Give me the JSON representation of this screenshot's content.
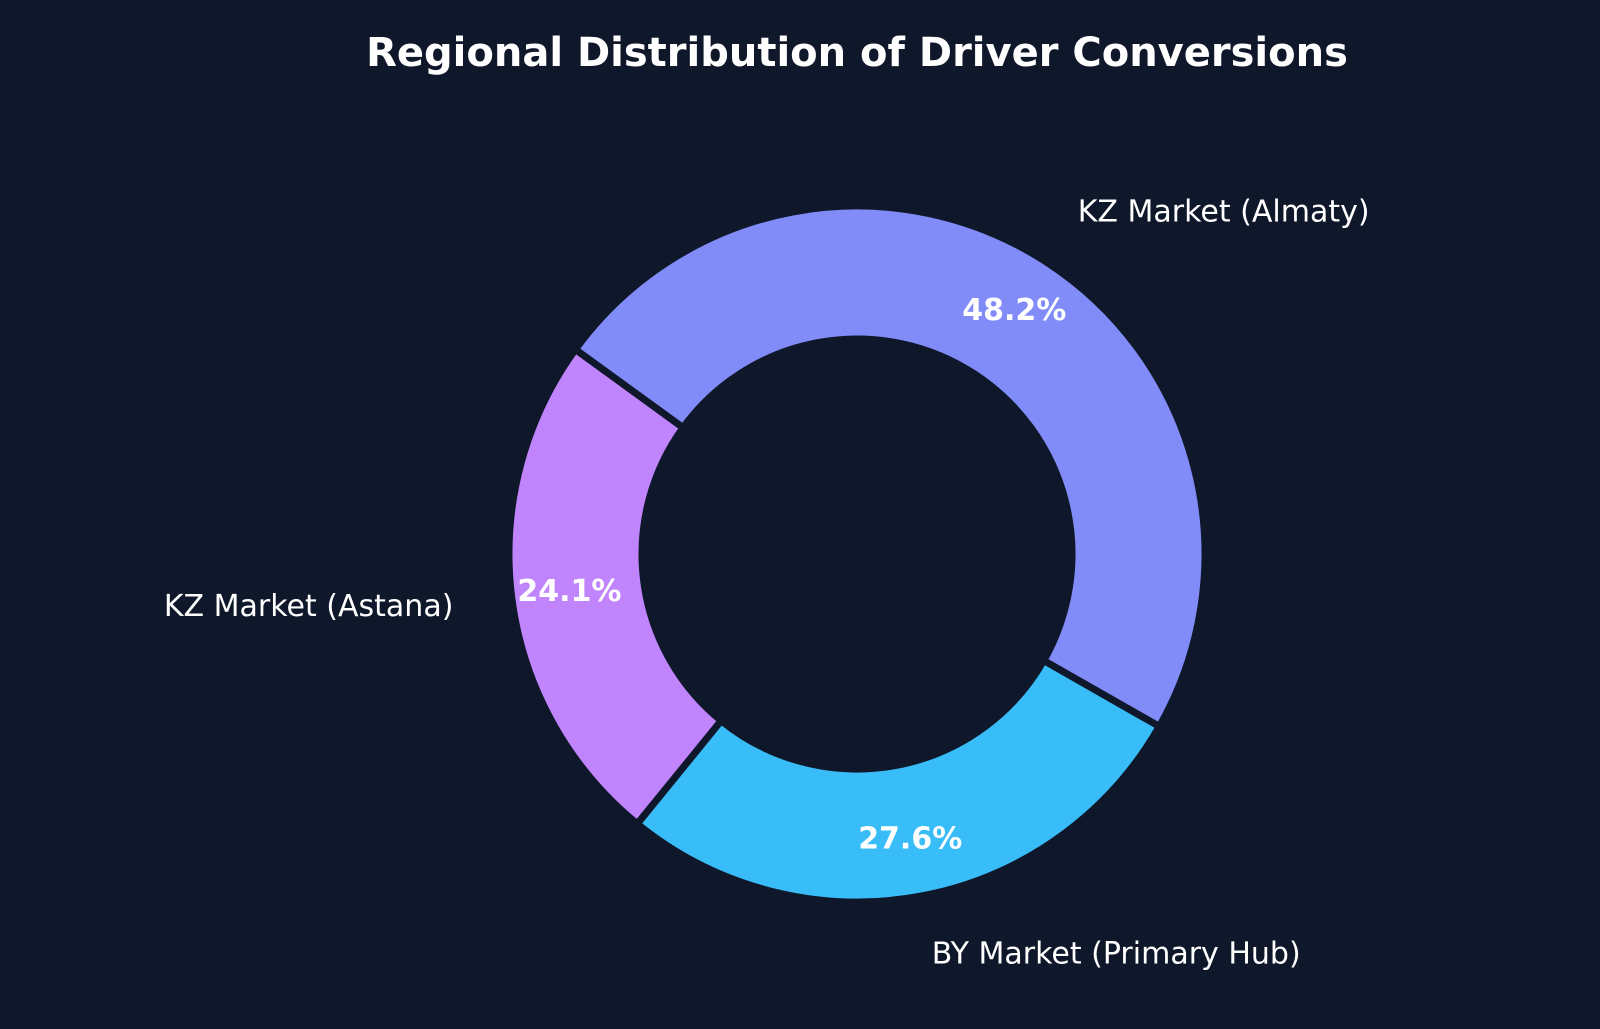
{
  "chart_data": {
    "type": "pie",
    "variant": "donut",
    "title": "Regional Distribution of Driver Conversions",
    "categories": [
      "KZ Market (Astana)",
      "BY Market (Primary Hub)",
      "KZ Market (Almaty)"
    ],
    "values": [
      24.1,
      27.6,
      48.2
    ],
    "value_labels": [
      "24.1%",
      "27.6%",
      "48.2%"
    ],
    "colors": [
      "#c084fc",
      "#38bdf8",
      "#818cf8"
    ],
    "background": "#0f172a",
    "legend": "none",
    "start_angle_deg": 144,
    "direction": "counterclockwise"
  }
}
